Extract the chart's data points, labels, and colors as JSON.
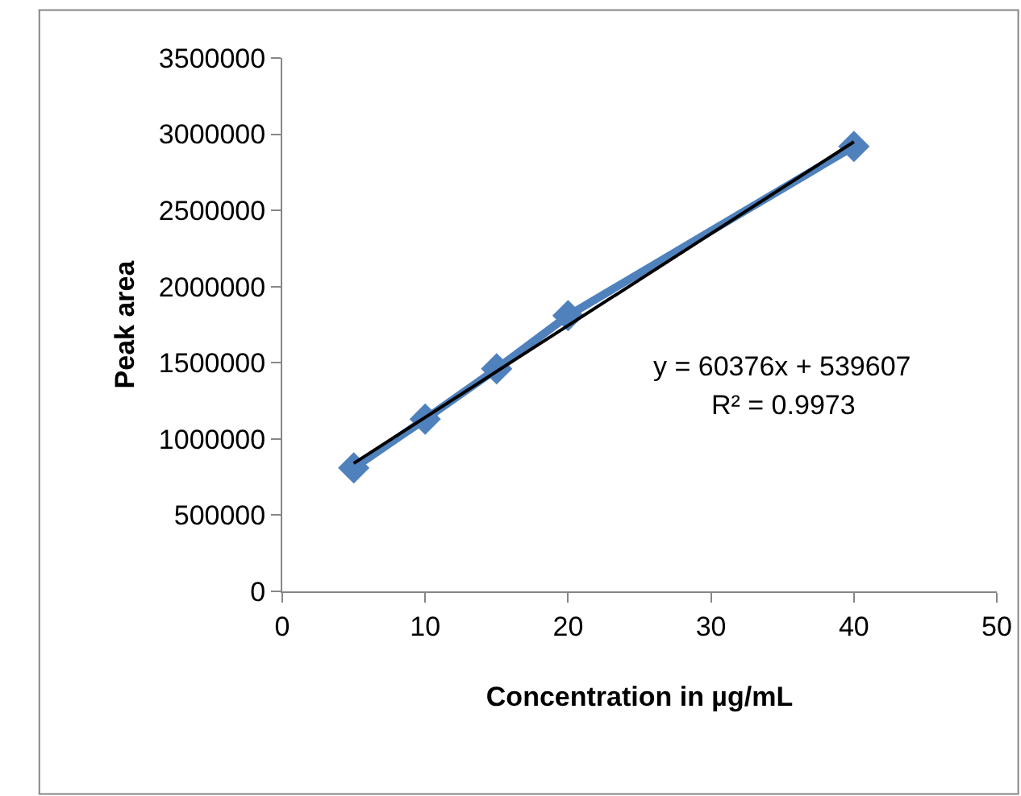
{
  "chart_data": {
    "type": "line",
    "xlabel": "Concentration in µg/mL",
    "ylabel": "Peak area",
    "x": [
      5,
      10,
      15,
      20,
      40
    ],
    "series": [
      {
        "color": "#4f81bd",
        "marker": "diamond",
        "values": [
          810000,
          1130000,
          1460000,
          1810000,
          2920000
        ]
      },
      {
        "color": "#000000",
        "marker": "none",
        "x": [
          5,
          40
        ],
        "values": [
          840000,
          2950000
        ]
      }
    ],
    "annotations": [
      "y = 60376x + 539607",
      "R² = 0.9973"
    ],
    "xlim": [
      0,
      50
    ],
    "xticks": [
      0,
      10,
      20,
      30,
      40,
      50
    ],
    "ylim": [
      0,
      3500000
    ],
    "yticks": [
      0,
      500000,
      1000000,
      1500000,
      2000000,
      2500000,
      3000000,
      3500000
    ],
    "grid": false,
    "line_style": "solid"
  }
}
